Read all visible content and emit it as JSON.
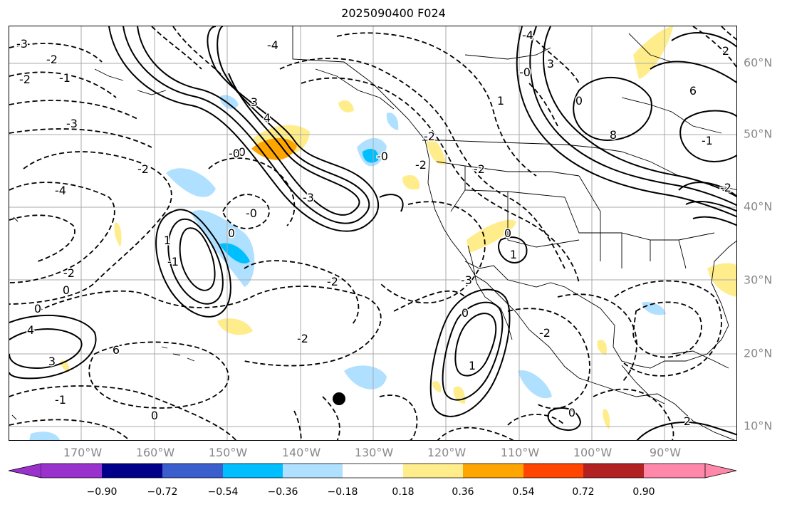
{
  "title": "2025090400 F024",
  "lon_labels": [
    "170°W",
    "160°W",
    "150°W",
    "140°W",
    "130°W",
    "120°W",
    "110°W",
    "100°W",
    "90°W"
  ],
  "lat_labels": [
    "60°N",
    "50°N",
    "40°N",
    "30°N",
    "20°N",
    "10°N"
  ],
  "colorbar": {
    "tick_labels": [
      "−0.90",
      "−0.72",
      "−0.54",
      "−0.36",
      "−0.18",
      "0.18",
      "0.36",
      "0.54",
      "0.72",
      "0.90"
    ],
    "colors": [
      "#9932cc",
      "#00008b",
      "#3a5fcd",
      "#00bfff",
      "#b0e0ff",
      "#ffffff",
      "#ffec8b",
      "#ffa500",
      "#ff4500",
      "#b22222",
      "#ff88aa"
    ]
  },
  "contour_labels": [
    {
      "text": "-3"
    },
    {
      "text": "-2"
    },
    {
      "text": "-1"
    },
    {
      "text": "-2"
    },
    {
      "text": "-3"
    },
    {
      "text": "-4"
    },
    {
      "text": "-2"
    },
    {
      "text": "-0"
    },
    {
      "text": "0"
    },
    {
      "text": "-1"
    },
    {
      "text": "1"
    },
    {
      "text": "-0"
    },
    {
      "text": "0"
    },
    {
      "text": "-2"
    },
    {
      "text": "-2"
    },
    {
      "text": "-2"
    },
    {
      "text": "-4"
    },
    {
      "text": "3"
    },
    {
      "text": "4"
    },
    {
      "text": "-0"
    },
    {
      "text": "-3"
    },
    {
      "text": "-0"
    },
    {
      "text": "-2"
    },
    {
      "text": "-2"
    },
    {
      "text": "-2"
    },
    {
      "text": "-4"
    },
    {
      "text": "3"
    },
    {
      "text": "1"
    },
    {
      "text": "0"
    },
    {
      "text": "-0"
    },
    {
      "text": "0"
    },
    {
      "text": "1"
    },
    {
      "text": "-3"
    },
    {
      "text": "0"
    },
    {
      "text": "1"
    },
    {
      "text": "-2"
    },
    {
      "text": "0"
    },
    {
      "text": "-1"
    },
    {
      "text": "0"
    },
    {
      "text": "4"
    },
    {
      "text": "3"
    },
    {
      "text": "6"
    },
    {
      "text": "6"
    },
    {
      "text": "8"
    },
    {
      "text": "-1"
    },
    {
      "text": "0"
    },
    {
      "text": "2"
    },
    {
      "text": "2"
    },
    {
      "text": "-2"
    }
  ],
  "marker": {
    "label": "black-dot",
    "color": "#000000"
  },
  "colors": {
    "land_line": "#000000",
    "grid": "#aaaaaa",
    "axis_text": "#888888"
  }
}
